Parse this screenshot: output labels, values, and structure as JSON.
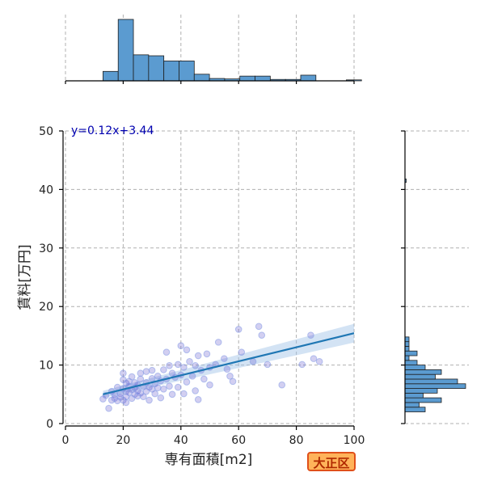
{
  "chart_data": {
    "type": "scatter",
    "xlabel": "専有面積[m2]",
    "ylabel": "賃料[万円]",
    "xlim": [
      0,
      100
    ],
    "ylim": [
      0,
      50
    ],
    "x_ticks": [
      0,
      20,
      40,
      60,
      80,
      100
    ],
    "y_ticks": [
      0,
      10,
      20,
      30,
      40,
      50
    ],
    "grid": true,
    "regression": {
      "equation": "y=0.12x+3.44",
      "slope": 0.12,
      "intercept": 3.44,
      "x_range": [
        13,
        100
      ],
      "ci_half_width_start": 0.6,
      "ci_half_width_end": 1.6
    },
    "points": [
      [
        13,
        4.2
      ],
      [
        14,
        4.8
      ],
      [
        15,
        2.6
      ],
      [
        16,
        4.0
      ],
      [
        16,
        5.5
      ],
      [
        17,
        5.0
      ],
      [
        17,
        4.3
      ],
      [
        18,
        3.9
      ],
      [
        18,
        6.2
      ],
      [
        19,
        5.1
      ],
      [
        19,
        4.5
      ],
      [
        20,
        4.0
      ],
      [
        20,
        6.0
      ],
      [
        20,
        7.5
      ],
      [
        20,
        8.6
      ],
      [
        21,
        5.5
      ],
      [
        21,
        6.9
      ],
      [
        21,
        4.6
      ],
      [
        21,
        3.6
      ],
      [
        22,
        5.3
      ],
      [
        22,
        7.2
      ],
      [
        22,
        6.4
      ],
      [
        23,
        5.8
      ],
      [
        23,
        4.3
      ],
      [
        23,
        8.0
      ],
      [
        24,
        6.1
      ],
      [
        24,
        5.0
      ],
      [
        24,
        7.0
      ],
      [
        25,
        4.7
      ],
      [
        25,
        6.6
      ],
      [
        25,
        5.6
      ],
      [
        26,
        7.6
      ],
      [
        26,
        5.2
      ],
      [
        26,
        8.6
      ],
      [
        27,
        6.3
      ],
      [
        27,
        4.6
      ],
      [
        28,
        7.0
      ],
      [
        28,
        5.5
      ],
      [
        28,
        8.9
      ],
      [
        29,
        6.2
      ],
      [
        29,
        4.0
      ],
      [
        30,
        7.7
      ],
      [
        30,
        5.9
      ],
      [
        30,
        9.1
      ],
      [
        31,
        6.8
      ],
      [
        31,
        5.1
      ],
      [
        32,
        8.1
      ],
      [
        32,
        6.1
      ],
      [
        33,
        7.3
      ],
      [
        33,
        4.4
      ],
      [
        34,
        9.2
      ],
      [
        34,
        5.9
      ],
      [
        35,
        12.2
      ],
      [
        35,
        7.6
      ],
      [
        36,
        9.9
      ],
      [
        36,
        6.4
      ],
      [
        37,
        8.6
      ],
      [
        37,
        5.0
      ],
      [
        38,
        7.9
      ],
      [
        39,
        10.1
      ],
      [
        39,
        6.2
      ],
      [
        40,
        13.3
      ],
      [
        40,
        8.3
      ],
      [
        41,
        9.6
      ],
      [
        41,
        5.1
      ],
      [
        42,
        12.6
      ],
      [
        42,
        7.1
      ],
      [
        43,
        10.6
      ],
      [
        44,
        8.1
      ],
      [
        45,
        5.6
      ],
      [
        45,
        9.9
      ],
      [
        46,
        11.6
      ],
      [
        46,
        4.1
      ],
      [
        47,
        9.1
      ],
      [
        48,
        7.6
      ],
      [
        49,
        11.9
      ],
      [
        50,
        6.6
      ],
      [
        50,
        9.6
      ],
      [
        52,
        10.1
      ],
      [
        53,
        13.9
      ],
      [
        55,
        11.1
      ],
      [
        56,
        9.3
      ],
      [
        57,
        8.1
      ],
      [
        58,
        7.2
      ],
      [
        60,
        16.1
      ],
      [
        61,
        12.2
      ],
      [
        65,
        10.6
      ],
      [
        67,
        16.6
      ],
      [
        68,
        15.1
      ],
      [
        70,
        10.1
      ],
      [
        75,
        6.6
      ],
      [
        82,
        10.1
      ],
      [
        85,
        15.1
      ],
      [
        86,
        11.1
      ],
      [
        88,
        10.6
      ]
    ],
    "x_histogram": {
      "bin_start": 13,
      "bin_width": 5.27,
      "counts": [
        2,
        13,
        5.5,
        5.3,
        4.2,
        4.2,
        1.4,
        0.5,
        0.4,
        1,
        1,
        0.3,
        0.3,
        1.2,
        0,
        0,
        0.2
      ]
    },
    "y_histogram": {
      "bin_start": 2,
      "bin_width": 0.8,
      "counts": [
        5,
        3.5,
        9,
        4.5,
        8,
        15,
        13,
        7.5,
        9,
        5,
        3,
        1,
        3,
        1,
        1,
        1
      ]
    },
    "y_histogram_outlier": {
      "y": 41.5,
      "count": 0.2
    }
  },
  "badge": {
    "text": "大正区"
  }
}
